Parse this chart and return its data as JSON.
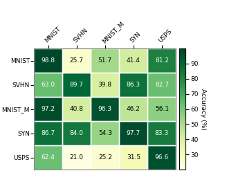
{
  "labels": [
    "MNIST",
    "SVHN",
    "MNIST_M",
    "SYN",
    "USPS"
  ],
  "values": [
    [
      98.8,
      25.7,
      51.7,
      41.4,
      81.2
    ],
    [
      63.0,
      89.7,
      39.8,
      86.3,
      62.7
    ],
    [
      97.2,
      40.8,
      96.3,
      46.2,
      56.1
    ],
    [
      86.7,
      84.0,
      54.3,
      97.7,
      83.3
    ],
    [
      62.4,
      21.0,
      25.2,
      31.5,
      96.6
    ]
  ],
  "colormap": "YlGn",
  "vmin": 20,
  "vmax": 100,
  "colorbar_ticks": [
    30,
    40,
    50,
    60,
    70,
    80,
    90
  ],
  "colorbar_label": "Accuracy (%)",
  "text_threshold": 60,
  "fontsize_cell": 6.5,
  "fontsize_labels": 6.5,
  "fontsize_colorbar": 6.5
}
